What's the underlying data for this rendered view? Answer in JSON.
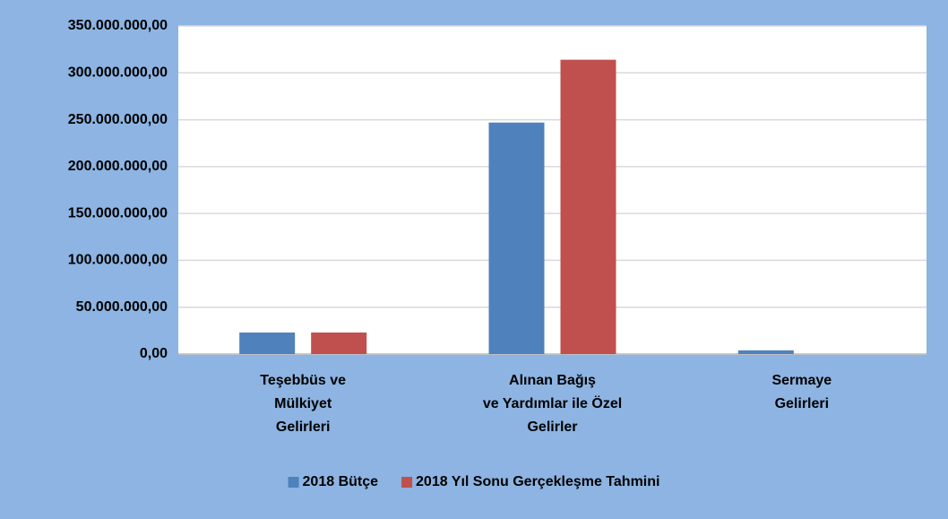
{
  "chart_data": {
    "type": "bar",
    "categories": [
      [
        "Teşebbüs ve",
        "Mülkiyet",
        "Gelirleri"
      ],
      [
        "Alınan Bağış",
        "ve Yardımlar ile Özel",
        "Gelirler"
      ],
      [
        "Sermaye",
        "Gelirleri"
      ]
    ],
    "series": [
      {
        "name": "2018 Bütçe",
        "color": "#4f81bd",
        "values": [
          23000000,
          247000000,
          4000000
        ]
      },
      {
        "name": "2018 Yıl Sonu Gerçekleşme Tahmini",
        "color": "#c0504d",
        "values": [
          23000000,
          314000000,
          0
        ]
      }
    ],
    "ylim": [
      0,
      350000000
    ],
    "yticks": [
      {
        "value": 0,
        "label": "0,00"
      },
      {
        "value": 50000000,
        "label": "50.000.000,00"
      },
      {
        "value": 100000000,
        "label": "100.000.000,00"
      },
      {
        "value": 150000000,
        "label": "150.000.000,00"
      },
      {
        "value": 200000000,
        "label": "200.000.000,00"
      },
      {
        "value": 250000000,
        "label": "250.000.000,00"
      },
      {
        "value": 300000000,
        "label": "300.000.000,00"
      },
      {
        "value": 350000000,
        "label": "350.000.000,00"
      }
    ],
    "grid": true,
    "legend": "bottom"
  }
}
